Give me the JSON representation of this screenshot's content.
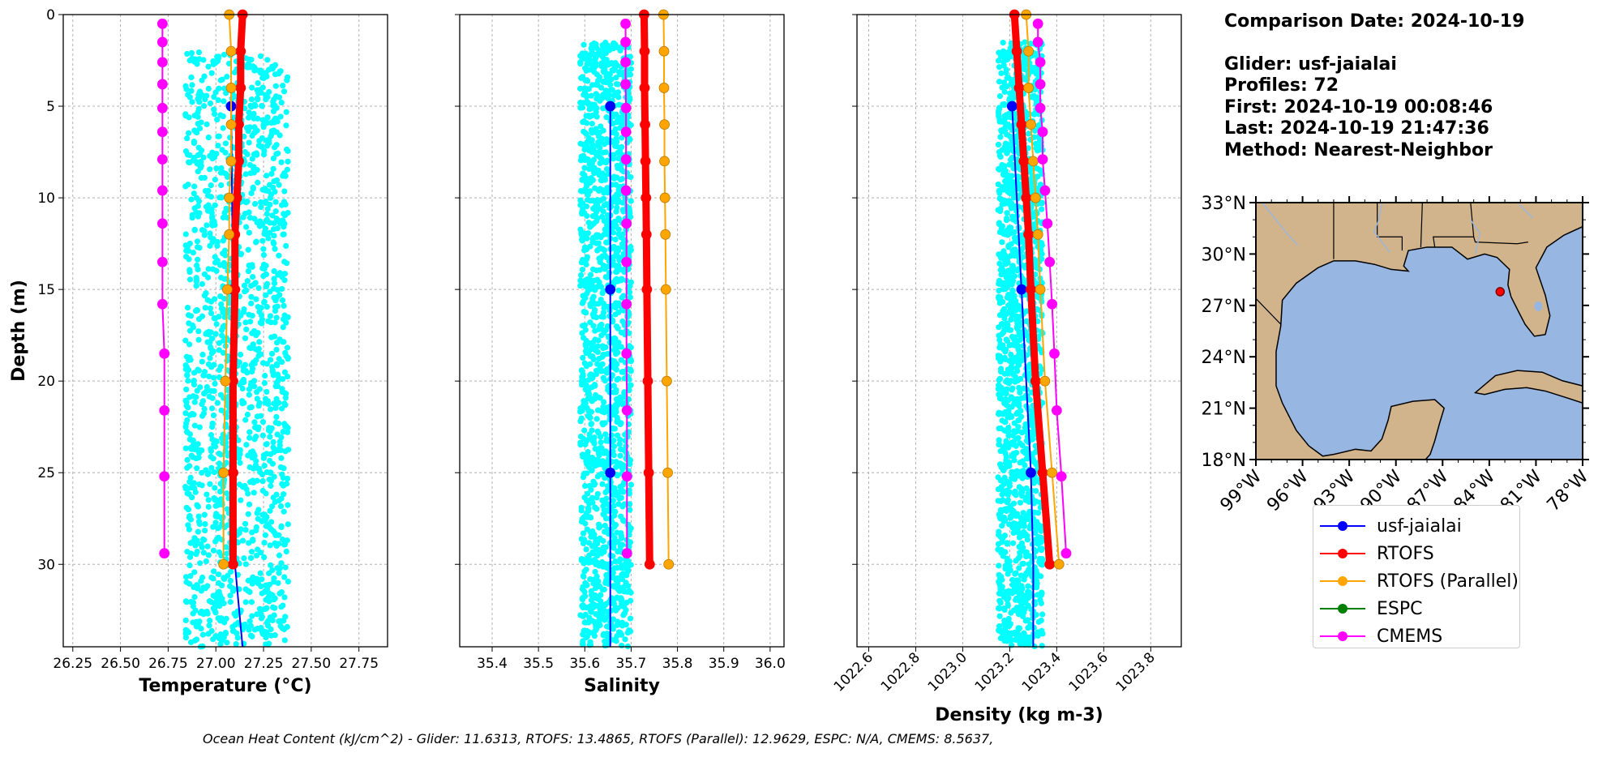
{
  "info": {
    "comparison_date": "Comparison Date: 2024-10-19",
    "glider": "Glider: usf-jaialai",
    "profiles": "Profiles: 72",
    "first": "First: 2024-10-19 00:08:46",
    "last": "Last: 2024-10-19 21:47:36",
    "method": "Method: Nearest-Neighbor"
  },
  "footer": "Ocean Heat Content (kJ/cm^2) - Glider: 11.6313,  RTOFS: 13.4865,  RTOFS (Parallel): 12.9629,  ESPC: N/A,  CMEMS: 8.5637,",
  "colors": {
    "glider": "#0000ff",
    "rtofs": "#ff0000",
    "rtofs_parallel": "#ffa500",
    "espc": "#008000",
    "cmems": "#ff00ff",
    "scatter": "#00ffff",
    "land": "#d2b48c",
    "ocean": "#97b6e1"
  },
  "legend": [
    {
      "label": "usf-jaialai",
      "color": "#0000ff"
    },
    {
      "label": "RTOFS",
      "color": "#ff0000"
    },
    {
      "label": "RTOFS (Parallel)",
      "color": "#ffa500"
    },
    {
      "label": "ESPC",
      "color": "#008000"
    },
    {
      "label": "CMEMS",
      "color": "#ff00ff"
    }
  ],
  "chart_data": [
    {
      "type": "line",
      "xlabel": "Temperature (°C)",
      "ylabel": "Depth (m)",
      "xlim": [
        26.2,
        27.9
      ],
      "ylim": [
        34.5,
        0
      ],
      "xticks": [
        "26.25",
        "26.50",
        "26.75",
        "27.00",
        "27.25",
        "27.50",
        "27.75"
      ],
      "yticks": [
        "0",
        "5",
        "10",
        "15",
        "20",
        "25",
        "30"
      ],
      "grid": true,
      "scatter_band": {
        "x_range": [
          26.84,
          27.38
        ],
        "depth_range": [
          2,
          34.5
        ]
      },
      "series": [
        {
          "name": "usf-jaialai",
          "depth": [
            5,
            15,
            25
          ],
          "values": [
            27.08,
            27.09,
            27.09
          ],
          "tail": {
            "depth": [
              30,
              34.5
            ],
            "values": [
              27.1,
              27.14
            ]
          }
        },
        {
          "name": "RTOFS",
          "depth": [
            0,
            2,
            4,
            6,
            8,
            10,
            12,
            15,
            20,
            25,
            30
          ],
          "values": [
            27.14,
            27.13,
            27.13,
            27.12,
            27.12,
            27.11,
            27.1,
            27.1,
            27.09,
            27.09,
            27.09
          ]
        },
        {
          "name": "RTOFS (Parallel)",
          "depth": [
            0,
            2,
            4,
            6,
            8,
            10,
            12,
            15,
            20,
            25,
            30
          ],
          "values": [
            27.07,
            27.08,
            27.08,
            27.08,
            27.08,
            27.07,
            27.07,
            27.06,
            27.05,
            27.04,
            27.04
          ]
        },
        {
          "name": "CMEMS",
          "depth": [
            0.5,
            1.5,
            2.6,
            3.8,
            5.1,
            6.4,
            7.9,
            9.6,
            11.4,
            13.5,
            15.8,
            18.5,
            21.6,
            25.2,
            29.4
          ],
          "values": [
            26.72,
            26.72,
            26.72,
            26.72,
            26.72,
            26.72,
            26.72,
            26.72,
            26.72,
            26.72,
            26.72,
            26.73,
            26.73,
            26.73,
            26.73
          ]
        }
      ]
    },
    {
      "type": "line",
      "xlabel": "Salinity",
      "ylim": [
        34.5,
        0
      ],
      "xlim": [
        35.33,
        36.03
      ],
      "xticks": [
        "35.4",
        "35.5",
        "35.6",
        "35.7",
        "35.8",
        "35.9",
        "36.0"
      ],
      "grid": true,
      "scatter_band": {
        "x_range": [
          35.59,
          35.7
        ],
        "depth_range": [
          1.5,
          34.5
        ]
      },
      "series": [
        {
          "name": "usf-jaialai",
          "depth": [
            5,
            15,
            25
          ],
          "values": [
            35.655,
            35.655,
            35.655
          ],
          "tail": {
            "depth": [
              30,
              34.5
            ],
            "values": [
              35.655,
              35.655
            ]
          }
        },
        {
          "name": "RTOFS",
          "depth": [
            0,
            2,
            4,
            6,
            8,
            10,
            12,
            15,
            20,
            25,
            30
          ],
          "values": [
            35.728,
            35.729,
            35.729,
            35.73,
            35.731,
            35.732,
            35.733,
            35.734,
            35.736,
            35.738,
            35.74
          ]
        },
        {
          "name": "RTOFS (Parallel)",
          "depth": [
            0,
            2,
            4,
            6,
            8,
            10,
            12,
            15,
            20,
            25,
            30
          ],
          "values": [
            35.77,
            35.771,
            35.771,
            35.772,
            35.772,
            35.773,
            35.774,
            35.775,
            35.777,
            35.779,
            35.781
          ]
        },
        {
          "name": "CMEMS",
          "depth": [
            0.5,
            1.5,
            2.6,
            3.8,
            5.1,
            6.4,
            7.9,
            9.6,
            11.4,
            13.5,
            15.8,
            18.5,
            21.6,
            25.2,
            29.4
          ],
          "values": [
            35.688,
            35.688,
            35.688,
            35.688,
            35.689,
            35.689,
            35.689,
            35.689,
            35.69,
            35.69,
            35.69,
            35.69,
            35.691,
            35.691,
            35.691
          ]
        }
      ]
    },
    {
      "type": "line",
      "xlabel": "Density (kg m-3)",
      "ylim": [
        34.5,
        0
      ],
      "xlim": [
        1022.55,
        1023.93
      ],
      "xticks": [
        "1022.6",
        "1022.8",
        "1023.0",
        "1023.2",
        "1023.4",
        "1023.6",
        "1023.8"
      ],
      "grid": true,
      "scatter_band": {
        "x_range": [
          1023.15,
          1023.34
        ],
        "depth_range": [
          1.5,
          34.5
        ]
      },
      "series": [
        {
          "name": "usf-jaialai",
          "depth": [
            5,
            15,
            25
          ],
          "values": [
            1023.21,
            1023.25,
            1023.29
          ],
          "tail": {
            "depth": [
              30,
              34.5
            ],
            "values": [
              1023.3,
              1023.3
            ]
          }
        },
        {
          "name": "RTOFS",
          "depth": [
            0,
            2,
            4,
            6,
            8,
            10,
            12,
            15,
            20,
            25,
            30
          ],
          "values": [
            1023.22,
            1023.23,
            1023.24,
            1023.25,
            1023.26,
            1023.27,
            1023.28,
            1023.29,
            1023.31,
            1023.34,
            1023.37
          ]
        },
        {
          "name": "RTOFS (Parallel)",
          "depth": [
            0,
            2,
            4,
            6,
            8,
            10,
            12,
            15,
            20,
            25,
            30
          ],
          "values": [
            1023.27,
            1023.28,
            1023.28,
            1023.29,
            1023.3,
            1023.31,
            1023.32,
            1023.33,
            1023.35,
            1023.38,
            1023.41
          ]
        },
        {
          "name": "CMEMS",
          "depth": [
            0.5,
            1.5,
            2.6,
            3.8,
            5.1,
            6.4,
            7.9,
            9.6,
            11.4,
            13.5,
            15.8,
            18.5,
            21.6,
            25.2,
            29.4
          ],
          "values": [
            1023.32,
            1023.32,
            1023.33,
            1023.33,
            1023.33,
            1023.34,
            1023.34,
            1023.35,
            1023.36,
            1023.37,
            1023.38,
            1023.39,
            1023.4,
            1023.42,
            1023.44
          ]
        }
      ]
    },
    {
      "type": "map",
      "lat_range": [
        18,
        33
      ],
      "lon_range": [
        -99,
        -78
      ],
      "yticks": [
        "18°N",
        "21°N",
        "24°N",
        "27°N",
        "30°N",
        "33°N"
      ],
      "xticks": [
        "99°W",
        "96°W",
        "93°W",
        "90°W",
        "87°W",
        "84°W",
        "81°W",
        "78°W"
      ],
      "marker": {
        "lat": 27.8,
        "lon": -83.3
      }
    }
  ]
}
